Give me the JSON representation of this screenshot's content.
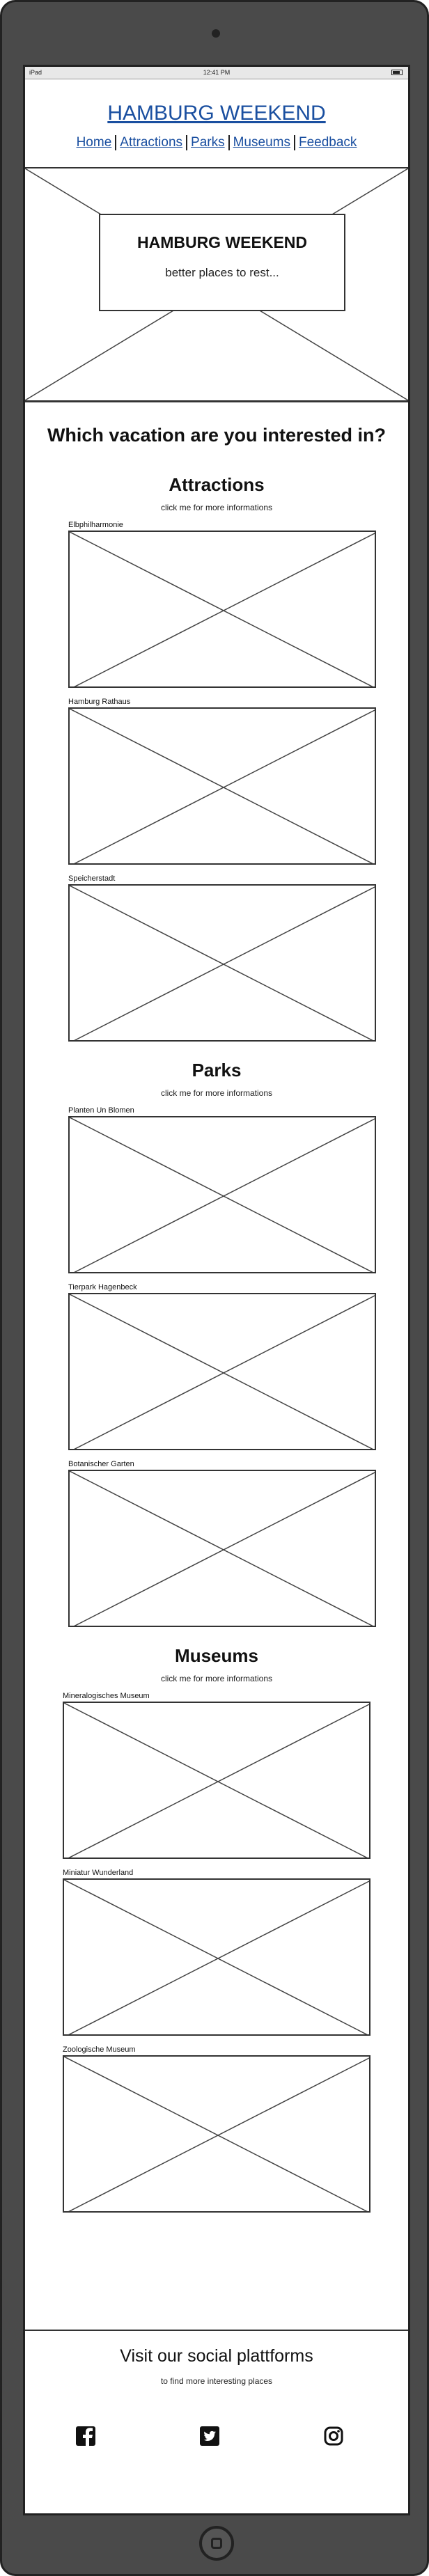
{
  "statusbar": {
    "device": "iPad",
    "time": "12:41 PM"
  },
  "header": {
    "title": "HAMBURG WEEKEND"
  },
  "nav": {
    "items": [
      {
        "label": "Home"
      },
      {
        "label": "Attractions"
      },
      {
        "label": "Parks"
      },
      {
        "label": "Museums"
      },
      {
        "label": "Feedback"
      }
    ]
  },
  "hero": {
    "title": "HAMBURG WEEKEND",
    "subtitle": "better places to rest..."
  },
  "main": {
    "question": "Which vacation are you interested in?"
  },
  "sections": [
    {
      "title": "Attractions",
      "hint": "click me for more informations",
      "cards": [
        {
          "label": "Elbphilharmonie"
        },
        {
          "label": "Hamburg Rathaus"
        },
        {
          "label": "Speicherstadt"
        }
      ]
    },
    {
      "title": "Parks",
      "hint": "click me for more informations",
      "cards": [
        {
          "label": "Planten Un Blomen"
        },
        {
          "label": "Tierpark Hagenbeck"
        },
        {
          "label": "Botanischer Garten"
        }
      ]
    },
    {
      "title": "Museums",
      "hint": "click me for more informations",
      "cards": [
        {
          "label": "Mineralogisches Museum"
        },
        {
          "label": "Miniatur Wunderland"
        },
        {
          "label": "Zoologische Museum"
        }
      ]
    }
  ],
  "footer": {
    "title": "Visit our social plattforms",
    "subtitle": "to find more interesting places",
    "socials": [
      {
        "icon": "facebook-icon"
      },
      {
        "icon": "twitter-icon"
      },
      {
        "icon": "instagram-icon"
      }
    ]
  }
}
